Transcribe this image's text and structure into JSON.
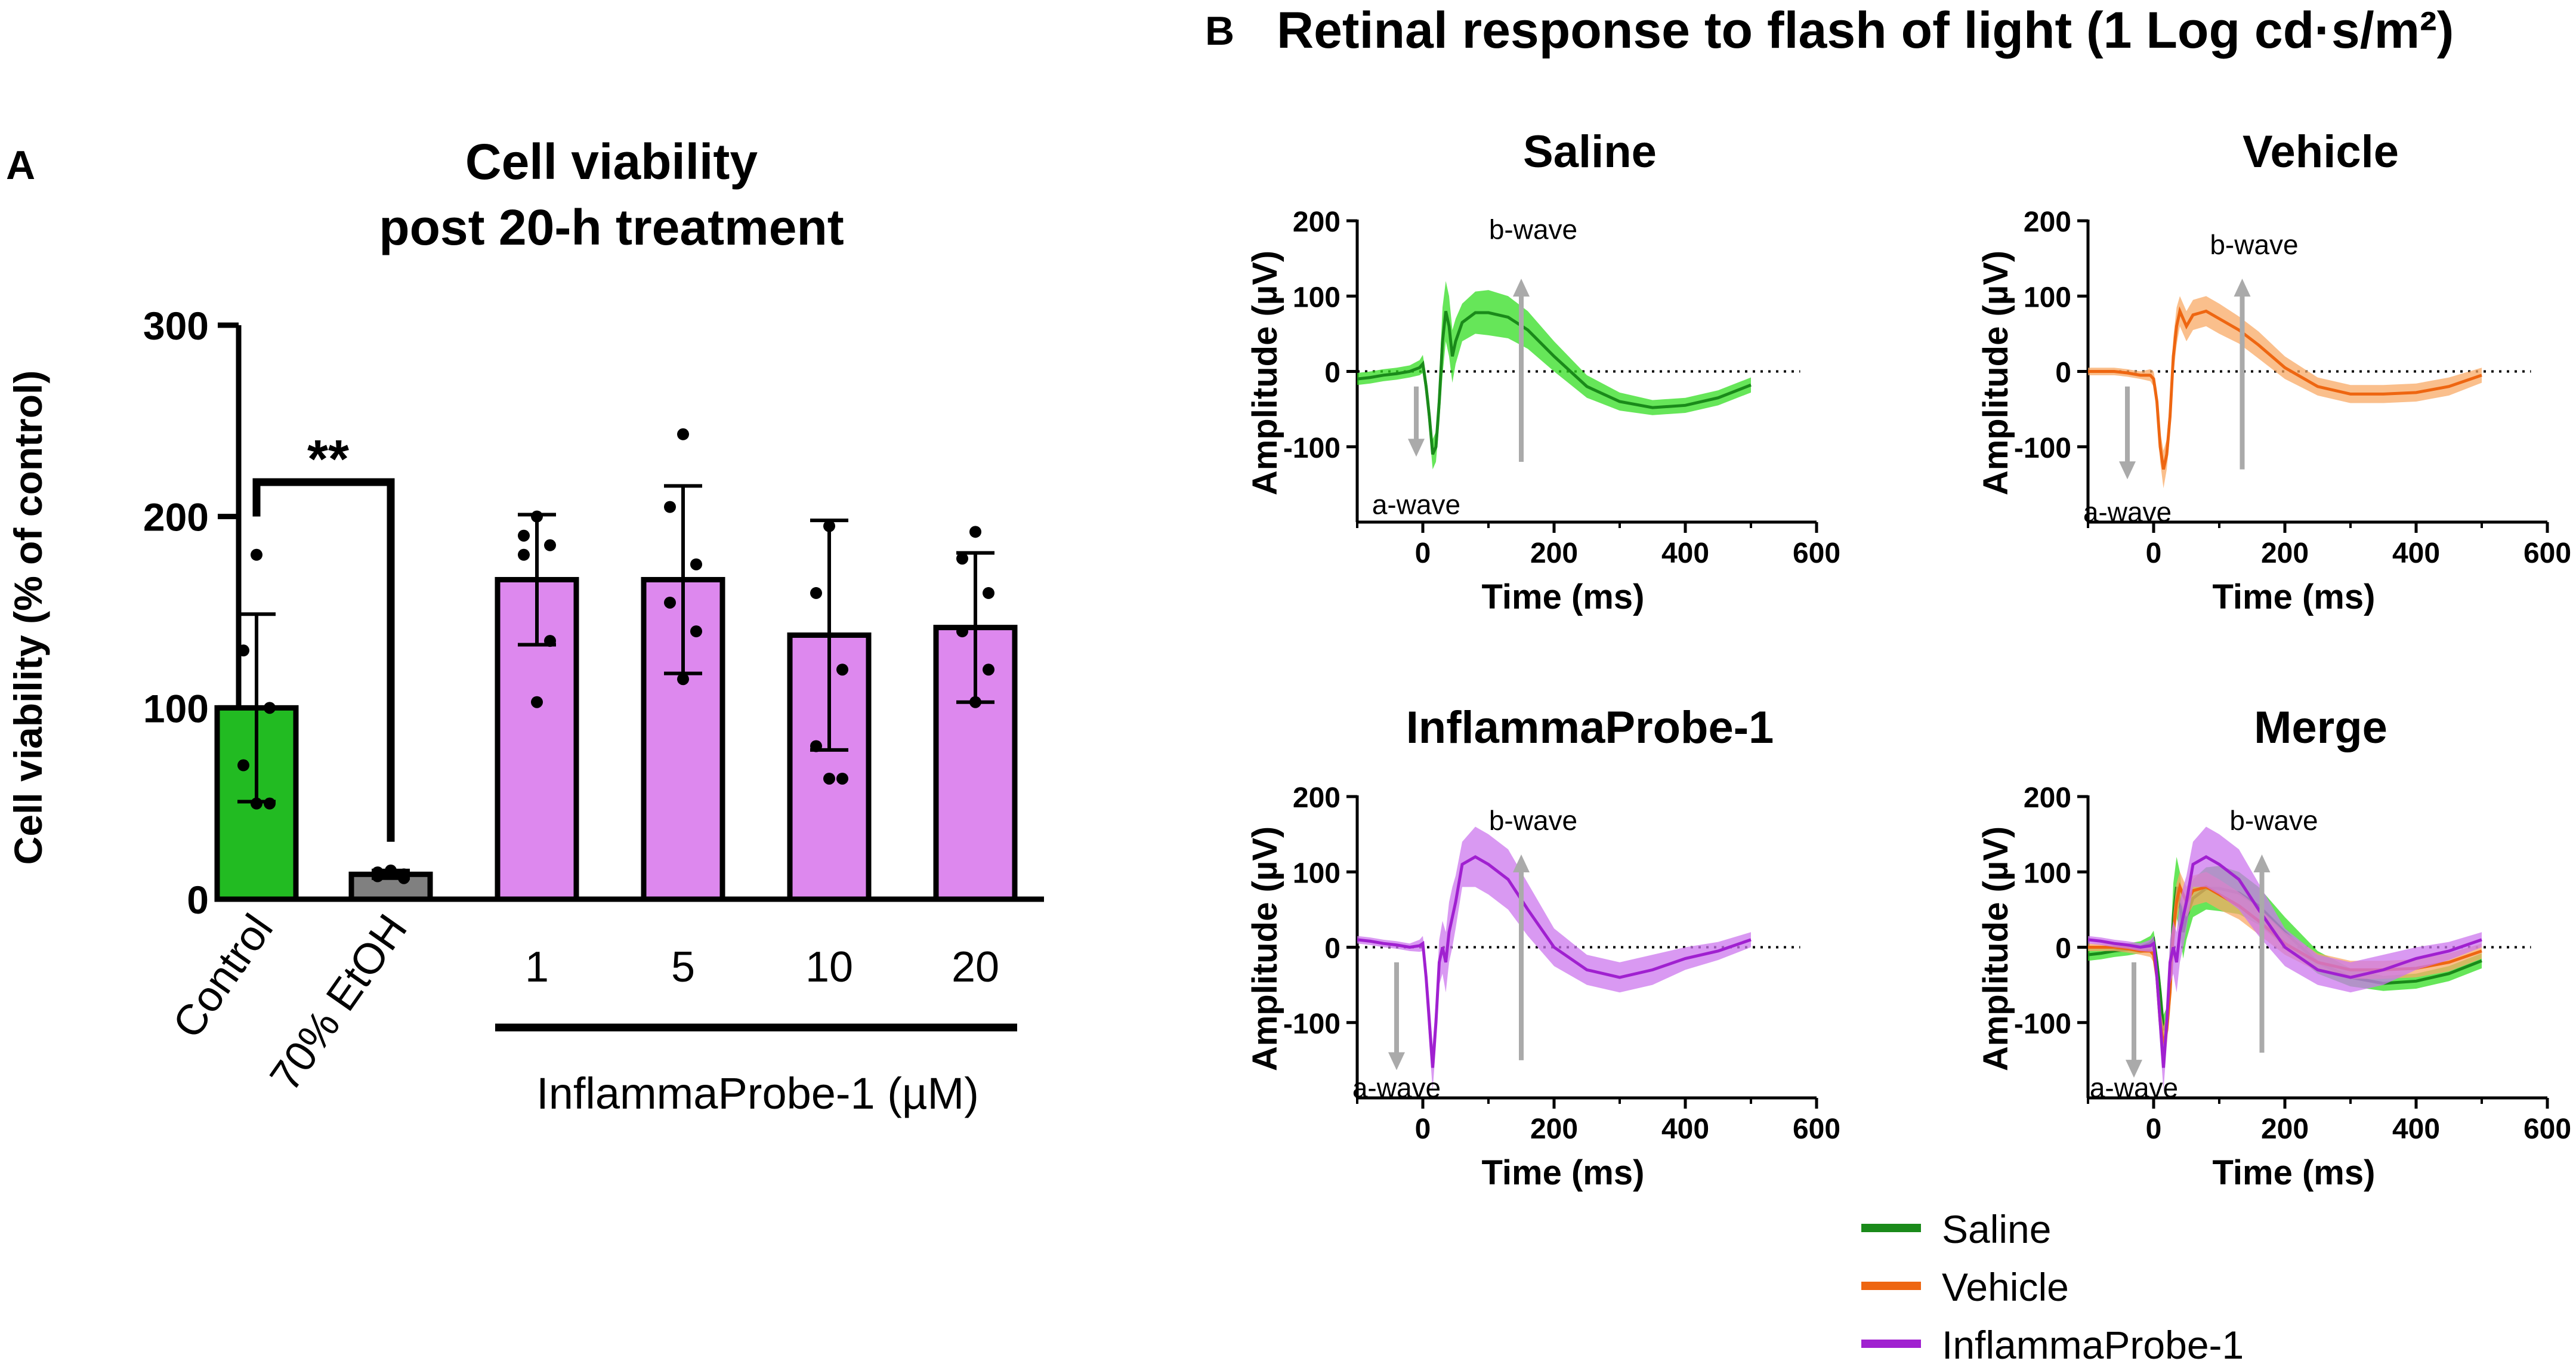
{
  "panel_labels": {
    "a": "A",
    "b": "B"
  },
  "figure_title_b": "Retinal response to flash of light (1 Log cd·s/m²)",
  "colors": {
    "control": "#22bb22",
    "etoh": "#808080",
    "probe_bar": "#dd88ee",
    "saline_line": "#1a8a1a",
    "saline_band": "#33dd22",
    "vehicle_line": "#ee6611",
    "vehicle_band": "#f8aa66",
    "probe_line": "#a020d0",
    "probe_band": "#cc77ee",
    "arrow": "#aaaaaa",
    "arrow_text": "#888888"
  },
  "chart_data": [
    {
      "type": "bar",
      "title": "Cell viability post 20-h treatment",
      "title_lines": [
        "Cell viability",
        "post 20-h treatment"
      ],
      "ylabel": "Cell viability (% of control)",
      "ylim": [
        0,
        300
      ],
      "yticks": [
        "0",
        "100",
        "200",
        "300"
      ],
      "categories": [
        "Control",
        "70% EtOH",
        "1",
        "5",
        "10",
        "20"
      ],
      "values": [
        100,
        13,
        167,
        167,
        138,
        142
      ],
      "sd": [
        49,
        2,
        34,
        49,
        60,
        39
      ],
      "points": [
        [
          180,
          130,
          100,
          70,
          50,
          50
        ],
        [
          15,
          14,
          13,
          12,
          11,
          14
        ],
        [
          200,
          190,
          185,
          180,
          135,
          103
        ],
        [
          243,
          205,
          175,
          155,
          140,
          115
        ],
        [
          195,
          160,
          120,
          80,
          63,
          63
        ],
        [
          192,
          178,
          160,
          140,
          120,
          103
        ]
      ],
      "group_label": "InflammaProbe-1 (µM)",
      "significance": "**"
    },
    {
      "type": "line",
      "title": "Saline",
      "xlabel": "Time (ms)",
      "ylabel": "Amplitude (µV)",
      "xlim": [
        -100,
        600
      ],
      "ylim": [
        -200,
        200
      ],
      "xticks": [
        "0",
        "200",
        "400",
        "600"
      ],
      "yticks": [
        "200",
        "100",
        "0",
        "-100"
      ],
      "series": [
        {
          "name": "Saline",
          "x": [
            -100,
            -80,
            -60,
            -40,
            -20,
            -5,
            0,
            5,
            10,
            15,
            20,
            25,
            30,
            35,
            40,
            45,
            50,
            60,
            80,
            100,
            130,
            160,
            200,
            250,
            300,
            350,
            400,
            450,
            500
          ],
          "y": [
            -10,
            -8,
            -5,
            -3,
            0,
            5,
            10,
            -20,
            -60,
            -110,
            -100,
            -40,
            40,
            80,
            60,
            20,
            40,
            65,
            78,
            78,
            72,
            55,
            20,
            -20,
            -40,
            -48,
            -45,
            -35,
            -18
          ],
          "err": [
            8,
            8,
            8,
            8,
            8,
            10,
            12,
            15,
            20,
            20,
            20,
            30,
            45,
            40,
            40,
            35,
            30,
            25,
            28,
            30,
            28,
            25,
            20,
            15,
            12,
            10,
            10,
            10,
            10
          ]
        }
      ],
      "annotations": {
        "a_wave": "a-wave",
        "b_wave": "b-wave"
      }
    },
    {
      "type": "line",
      "title": "Vehicle",
      "xlabel": "Time (ms)",
      "ylabel": "Amplitude (µV)",
      "xlim": [
        -100,
        600
      ],
      "ylim": [
        -200,
        200
      ],
      "xticks": [
        "0",
        "200",
        "400",
        "600"
      ],
      "yticks": [
        "200",
        "100",
        "0",
        "-100"
      ],
      "series": [
        {
          "name": "Vehicle",
          "x": [
            -100,
            -80,
            -60,
            -40,
            -20,
            -5,
            0,
            5,
            10,
            15,
            20,
            25,
            30,
            35,
            40,
            45,
            50,
            60,
            80,
            100,
            130,
            160,
            200,
            250,
            300,
            350,
            400,
            450,
            500
          ],
          "y": [
            0,
            0,
            0,
            -2,
            -5,
            -5,
            -10,
            -40,
            -100,
            -130,
            -110,
            -60,
            20,
            60,
            80,
            70,
            60,
            75,
            80,
            70,
            55,
            35,
            5,
            -20,
            -30,
            -30,
            -28,
            -20,
            -5
          ],
          "err": [
            5,
            5,
            5,
            5,
            5,
            8,
            10,
            15,
            20,
            25,
            20,
            25,
            25,
            25,
            20,
            20,
            20,
            20,
            20,
            20,
            18,
            18,
            15,
            12,
            12,
            12,
            12,
            12,
            10
          ]
        }
      ],
      "annotations": {
        "a_wave": "a-wave",
        "b_wave": "b-wave"
      }
    },
    {
      "type": "line",
      "title": "InflammaProbe-1",
      "xlabel": "Time (ms)",
      "ylabel": "Amplitude (µV)",
      "xlim": [
        -100,
        600
      ],
      "ylim": [
        -200,
        200
      ],
      "xticks": [
        "0",
        "200",
        "400",
        "600"
      ],
      "yticks": [
        "200",
        "100",
        "0",
        "-100"
      ],
      "series": [
        {
          "name": "InflammaProbe-1",
          "x": [
            -100,
            -80,
            -60,
            -40,
            -20,
            -5,
            0,
            5,
            10,
            15,
            20,
            25,
            30,
            35,
            40,
            45,
            50,
            60,
            80,
            100,
            130,
            160,
            200,
            250,
            300,
            350,
            400,
            450,
            500
          ],
          "y": [
            10,
            8,
            5,
            3,
            0,
            2,
            5,
            -40,
            -100,
            -160,
            -100,
            -20,
            0,
            -20,
            20,
            40,
            60,
            110,
            120,
            110,
            90,
            50,
            0,
            -30,
            -40,
            -30,
            -15,
            -5,
            10
          ],
          "err": [
            5,
            5,
            5,
            5,
            5,
            8,
            10,
            20,
            30,
            30,
            30,
            30,
            35,
            40,
            40,
            40,
            35,
            30,
            40,
            40,
            40,
            35,
            25,
            20,
            20,
            20,
            15,
            12,
            10
          ]
        }
      ],
      "annotations": {
        "a_wave": "a-wave",
        "b_wave": "b-wave"
      }
    },
    {
      "type": "line",
      "title": "Merge",
      "xlabel": "Time (ms)",
      "ylabel": "Amplitude (µV)",
      "xlim": [
        -100,
        600
      ],
      "ylim": [
        -200,
        200
      ],
      "xticks": [
        "0",
        "200",
        "400",
        "600"
      ],
      "yticks": [
        "200",
        "100",
        "0",
        "-100"
      ],
      "series": [
        {
          "name": "Saline",
          "ref": 1
        },
        {
          "name": "Vehicle",
          "ref": 2
        },
        {
          "name": "InflammaProbe-1",
          "ref": 3
        }
      ],
      "annotations": {
        "a_wave": "a-wave",
        "b_wave": "b-wave"
      }
    }
  ],
  "legend": {
    "items": [
      {
        "label": "Saline",
        "color": "#1a8a1a"
      },
      {
        "label": "Vehicle",
        "color": "#ee6611"
      },
      {
        "label": "InflammaProbe-1",
        "color": "#a020d0"
      }
    ]
  }
}
